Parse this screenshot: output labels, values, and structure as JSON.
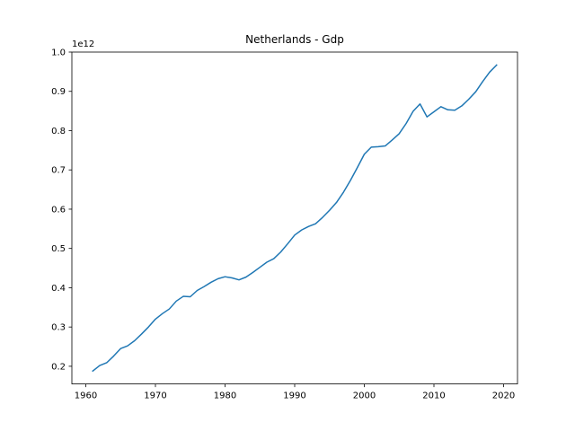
{
  "chart_data": {
    "type": "line",
    "title": "Netherlands - Gdp",
    "xlabel": "",
    "ylabel": "",
    "y_offset_text": "1e12",
    "y_scale": 1000000000000.0,
    "xlim": [
      1958,
      2022
    ],
    "ylim": [
      0.155,
      1.0
    ],
    "x_ticks": [
      1960,
      1970,
      1980,
      1990,
      2000,
      2010,
      2020
    ],
    "x_tick_labels": [
      "1960",
      "1970",
      "1980",
      "1990",
      "2000",
      "2010",
      "2020"
    ],
    "y_ticks": [
      0.2,
      0.3,
      0.4,
      0.5,
      0.6,
      0.7,
      0.8,
      0.9,
      1.0
    ],
    "y_tick_labels": [
      "0.2",
      "0.3",
      "0.4",
      "0.5",
      "0.6",
      "0.7",
      "0.8",
      "0.9",
      "1.0"
    ],
    "grid": false,
    "color": "#1f77b4",
    "series": [
      {
        "x": [
          1961,
          1962,
          1963,
          1964,
          1965,
          1966,
          1967,
          1968,
          1969,
          1970,
          1971,
          1972,
          1973,
          1974,
          1975,
          1976,
          1977,
          1978,
          1979,
          1980,
          1981,
          1982,
          1983,
          1984,
          1985,
          1986,
          1987,
          1988,
          1989,
          1990,
          1991,
          1992,
          1993,
          1994,
          1995,
          1996,
          1997,
          1998,
          1999,
          2000,
          2001,
          2002,
          2003,
          2004,
          2005,
          2006,
          2007,
          2008,
          2009,
          2010,
          2011,
          2012,
          2013,
          2014,
          2015,
          2016,
          2017,
          2018,
          2019
        ],
        "values": [
          0.188,
          0.202,
          0.209,
          0.226,
          0.245,
          0.252,
          0.265,
          0.282,
          0.3,
          0.32,
          0.334,
          0.346,
          0.366,
          0.378,
          0.377,
          0.393,
          0.403,
          0.414,
          0.423,
          0.428,
          0.425,
          0.42,
          0.427,
          0.439,
          0.452,
          0.465,
          0.474,
          0.491,
          0.512,
          0.534,
          0.547,
          0.556,
          0.563,
          0.579,
          0.597,
          0.617,
          0.643,
          0.673,
          0.706,
          0.74,
          0.758,
          0.759,
          0.761,
          0.776,
          0.792,
          0.818,
          0.849,
          0.868,
          0.835,
          0.848,
          0.861,
          0.853,
          0.852,
          0.863,
          0.88,
          0.899,
          0.925,
          0.949,
          0.967
        ]
      }
    ]
  }
}
